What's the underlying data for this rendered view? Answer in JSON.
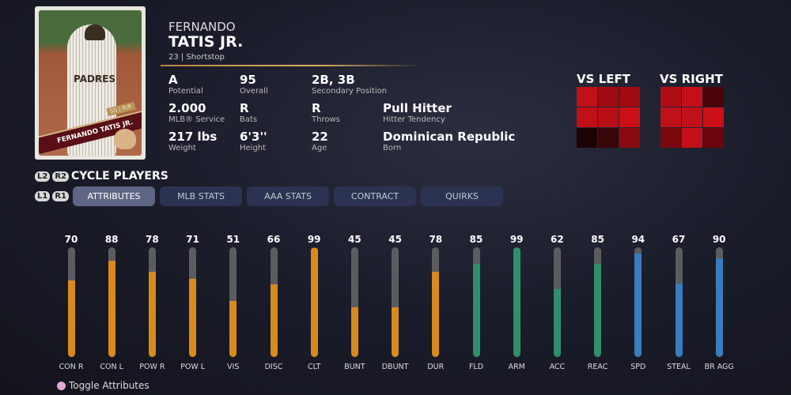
{
  "card": {
    "name": "FERNANDO TATIS JR.",
    "position_tag": "SS | R/R",
    "jersey": "PADRES"
  },
  "player": {
    "first_name": "FERNANDO",
    "last_name": "TATIS JR.",
    "subtitle": "23 | Shortstop"
  },
  "stats": [
    {
      "value": "A",
      "label": "Potential"
    },
    {
      "value": "95",
      "label": "Overall"
    },
    {
      "value": "2B, 3B",
      "label": "Secondary Position"
    },
    {
      "value": "2.000",
      "label": "MLB® Service"
    },
    {
      "value": "R",
      "label": "Bats"
    },
    {
      "value": "R",
      "label": "Throws"
    },
    {
      "value": "Pull Hitter",
      "label": "Hitter Tendency"
    },
    {
      "value": "217 lbs",
      "label": "Weight"
    },
    {
      "value": "6'3''",
      "label": "Height"
    },
    {
      "value": "22",
      "label": "Age"
    },
    {
      "value": "Dominican Republic",
      "label": "Born"
    }
  ],
  "hot_zones": {
    "vs_left": {
      "label": "VS LEFT",
      "colors": [
        "#c0101a",
        "#a00a12",
        "#a00a10",
        "#c01018",
        "#b80e16",
        "#cc1018",
        "#1e0306",
        "#3a0508",
        "#8a0a10"
      ]
    },
    "vs_right": {
      "label": "VS RIGHT",
      "colors": [
        "#b00c14",
        "#c4101a",
        "#4a0408",
        "#c0101a",
        "#c0101a",
        "#cc1018",
        "#7a080e",
        "#c4101a",
        "#6a060c"
      ]
    }
  },
  "controls": {
    "l2": "L2",
    "r2": "R2",
    "l1": "L1",
    "r1": "R1",
    "cycle": "CYCLE PLAYERS",
    "toggle": "Toggle Attributes"
  },
  "tabs": [
    {
      "label": "ATTRIBUTES",
      "active": true
    },
    {
      "label": "MLB STATS"
    },
    {
      "label": "AAA STATS"
    },
    {
      "label": "CONTRACT"
    },
    {
      "label": "QUIRKS"
    }
  ],
  "colors": {
    "hitting": "#d98a1c",
    "fielding": "#2e8f6a",
    "running": "#3a7cc0",
    "track": "#5c5c60"
  },
  "attributes": [
    {
      "label": "CON R",
      "value": 70,
      "group": "hitting"
    },
    {
      "label": "CON L",
      "value": 88,
      "group": "hitting"
    },
    {
      "label": "POW R",
      "value": 78,
      "group": "hitting"
    },
    {
      "label": "POW L",
      "value": 71,
      "group": "hitting"
    },
    {
      "label": "VIS",
      "value": 51,
      "group": "hitting"
    },
    {
      "label": "DISC",
      "value": 66,
      "group": "hitting"
    },
    {
      "label": "CLT",
      "value": 99,
      "group": "hitting"
    },
    {
      "label": "BUNT",
      "value": 45,
      "group": "hitting"
    },
    {
      "label": "DBUNT",
      "value": 45,
      "group": "hitting"
    },
    {
      "label": "DUR",
      "value": 78,
      "group": "hitting"
    },
    {
      "label": "FLD",
      "value": 85,
      "group": "fielding"
    },
    {
      "label": "ARM",
      "value": 99,
      "group": "fielding"
    },
    {
      "label": "ACC",
      "value": 62,
      "group": "fielding"
    },
    {
      "label": "REAC",
      "value": 85,
      "group": "fielding"
    },
    {
      "label": "SPD",
      "value": 94,
      "group": "running"
    },
    {
      "label": "STEAL",
      "value": 67,
      "group": "running"
    },
    {
      "label": "BR AGG",
      "value": 90,
      "group": "running"
    }
  ]
}
